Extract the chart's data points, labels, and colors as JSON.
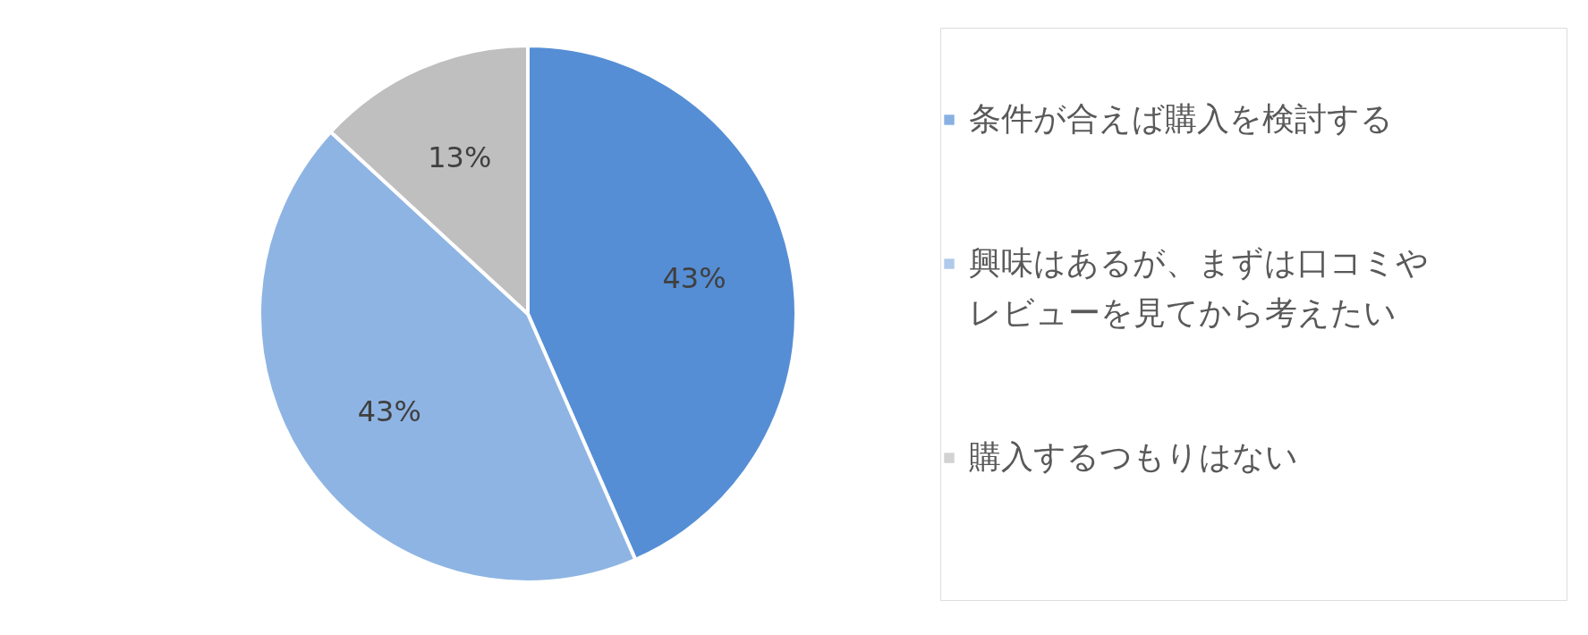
{
  "chart_data": {
    "type": "pie",
    "categories": [
      "条件が合えば購入を検討する",
      "興味はあるが、まずは口コミやレビューを見てから考えたい",
      "購入するつもりはない"
    ],
    "values": [
      43,
      43,
      13
    ],
    "value_labels": [
      "43%",
      "43%",
      "13%"
    ],
    "colors": [
      "#558ed5",
      "#8eb4e3",
      "#bfbfbf"
    ],
    "legend": "right"
  }
}
